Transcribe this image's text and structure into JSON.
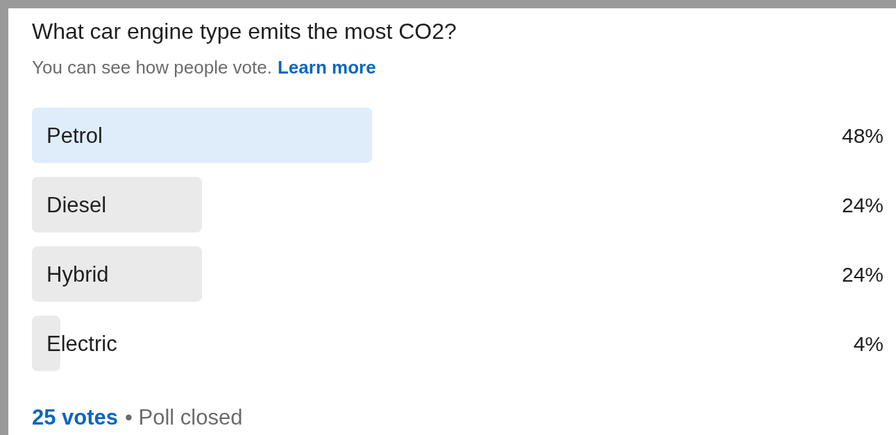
{
  "chart_data": {
    "type": "bar",
    "orientation": "horizontal",
    "title": "What car engine type emits the most CO2?",
    "subtitle": "You can see how people vote.",
    "categories": [
      "Petrol",
      "Diesel",
      "Hybrid",
      "Electric"
    ],
    "values": [
      48,
      24,
      24,
      4
    ],
    "colors": [
      "#dfedfb",
      "#eaeaea",
      "#eaeaea",
      "#eaeaea"
    ],
    "value_labels": [
      "48%",
      "24%",
      "24%",
      "4%"
    ],
    "annotations": [
      "Learn more",
      "25 votes",
      "• Poll closed"
    ]
  }
}
